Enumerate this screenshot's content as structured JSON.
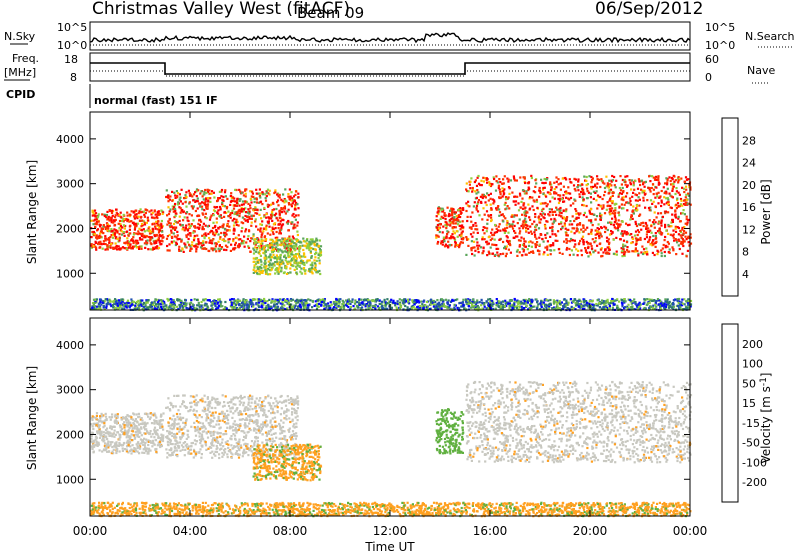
{
  "header": {
    "title": "Christmas Valley West (fitACF)",
    "beam": "Beam 09",
    "date": "06/Sep/2012"
  },
  "top_panels": {
    "nsky_label": "N.Sky",
    "nsky_ticks": [
      "10^5",
      "10^0"
    ],
    "nsearch_label": "N.Search",
    "nsearch_ticks": [
      "10^5",
      "10^0"
    ],
    "freq_label": "Freq.",
    "freq_unit": "[MHz]",
    "freq_ticks": [
      "18",
      "8"
    ],
    "nave_label": "Nave",
    "nave_ticks": [
      "60",
      "0"
    ],
    "cpid_label": "CPID",
    "cpid_text": "normal (fast) 151 IF"
  },
  "chart_data": [
    {
      "type": "heatmap",
      "panel": "power",
      "xlabel": "Time UT",
      "ylabel": "Slant Range [km]",
      "x_ticks": [
        "00:00",
        "04:00",
        "08:00",
        "12:00",
        "16:00",
        "20:00",
        "00:00"
      ],
      "y_ticks": [
        "4000",
        "3000",
        "2000",
        "1000"
      ],
      "xlim_hours": [
        0,
        24
      ],
      "ylim_km": [
        180,
        4600
      ],
      "colorbar": {
        "label": "Power [dB]",
        "ticks": [
          "28",
          "24",
          "20",
          "16",
          "12",
          "8",
          "4"
        ],
        "colors": [
          "#0000ff",
          "#1f4fb0",
          "#2f7a6a",
          "#5aa55a",
          "#8fcf3f",
          "#ffc000",
          "#ff8000",
          "#ff3000",
          "#ff0000"
        ]
      },
      "regions": [
        {
          "t0": 0.0,
          "t1": 2.9,
          "r0": 1550,
          "r1": 2450,
          "level": "high"
        },
        {
          "t0": 3.0,
          "t1": 8.3,
          "r0": 1500,
          "r1": 2900,
          "level": "high"
        },
        {
          "t0": 6.5,
          "t1": 9.2,
          "r0": 1000,
          "r1": 1800,
          "level": "mid"
        },
        {
          "t0": 13.8,
          "t1": 14.9,
          "r0": 1600,
          "r1": 2500,
          "level": "high"
        },
        {
          "t0": 15.0,
          "t1": 24.0,
          "r0": 1400,
          "r1": 3200,
          "level": "high"
        },
        {
          "t0": 0.0,
          "t1": 24.0,
          "r0": 200,
          "r1": 450,
          "level": "low"
        }
      ]
    },
    {
      "type": "heatmap",
      "panel": "velocity",
      "xlabel": "Time UT",
      "ylabel": "Slant Range [km]",
      "x_ticks": [
        "00:00",
        "04:00",
        "08:00",
        "12:00",
        "16:00",
        "20:00",
        "00:00"
      ],
      "y_ticks": [
        "4000",
        "3000",
        "2000",
        "1000"
      ],
      "xlim_hours": [
        0,
        24
      ],
      "ylim_km": [
        180,
        4600
      ],
      "colorbar": {
        "label": "Velocity [m s^-1]",
        "ticks": [
          "200",
          "100",
          "50",
          "15",
          "-15",
          "-50",
          "-100",
          "-200"
        ],
        "colors": [
          "#2040c0",
          "#207060",
          "#60b040",
          "#c8c8c0",
          "#ffa020",
          "#ff7000",
          "#ff3000",
          "#ff0000"
        ]
      },
      "regions": [
        {
          "t0": 0.0,
          "t1": 2.9,
          "r0": 1600,
          "r1": 2500,
          "level": "ground"
        },
        {
          "t0": 3.0,
          "t1": 8.3,
          "r0": 1500,
          "r1": 2900,
          "level": "ground"
        },
        {
          "t0": 6.5,
          "t1": 9.2,
          "r0": 1000,
          "r1": 1800,
          "level": "neg"
        },
        {
          "t0": 13.8,
          "t1": 14.9,
          "r0": 1600,
          "r1": 2600,
          "level": "pos"
        },
        {
          "t0": 15.0,
          "t1": 24.0,
          "r0": 1400,
          "r1": 3200,
          "level": "ground"
        },
        {
          "t0": 0.0,
          "t1": 24.0,
          "r0": 200,
          "r1": 500,
          "level": "neg"
        }
      ]
    }
  ]
}
